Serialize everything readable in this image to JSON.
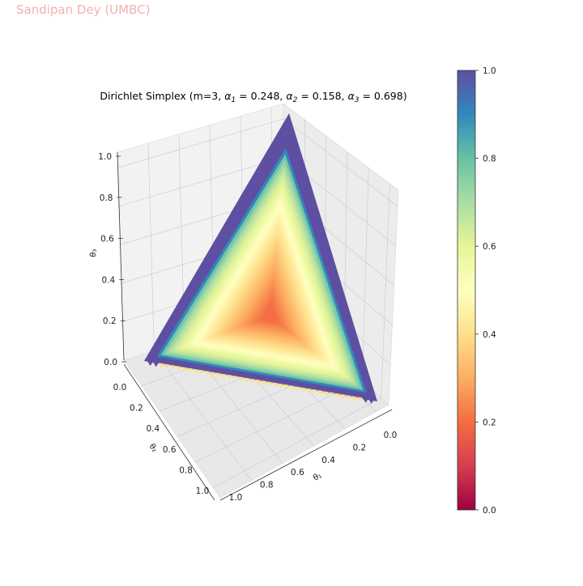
{
  "watermark": "Sandipan Dey (UMBC)",
  "chart_data": {
    "type": "surface3d",
    "title": "Dirichlet Simplex (m=3, α₁ = 0.248, α₂ = 0.158, α₃ = 0.698)",
    "title_parts": {
      "prefix": "Dirichlet Simplex (m=3, ",
      "a1_label": "α",
      "a1_sub": "1",
      "a1_value": " = 0.248, ",
      "a2_label": "α",
      "a2_sub": "2",
      "a2_value": " = 0.158, ",
      "a3_label": "α",
      "a3_sub": "3",
      "a3_value": " = 0.698)"
    },
    "m": 3,
    "alpha": [
      0.248,
      0.158,
      0.698
    ],
    "axes": {
      "x": {
        "label": "θ₁",
        "ticks": [
          "1.0",
          "0.8",
          "0.6",
          "0.4",
          "0.2",
          "0.0"
        ],
        "range": [
          0,
          1
        ]
      },
      "y": {
        "label": "θ₂",
        "ticks": [
          "0.0",
          "0.2",
          "0.4",
          "0.6",
          "0.8",
          "1.0"
        ],
        "range": [
          0,
          1
        ]
      },
      "z": {
        "label": "θ₃",
        "ticks": [
          "0.0",
          "0.2",
          "0.4",
          "0.6",
          "0.8",
          "1.0"
        ],
        "range": [
          0,
          1
        ]
      }
    },
    "colorbar": {
      "colormap": "Spectral",
      "ticks": [
        "0.0",
        "0.2",
        "0.4",
        "0.6",
        "0.8",
        "1.0"
      ],
      "range": [
        0,
        1
      ]
    },
    "colors": {
      "edge": "#5e4fa2",
      "center": "#f98e52",
      "pane": "#f2f2f2",
      "grid": "#c8c8c8"
    },
    "grid": true
  }
}
